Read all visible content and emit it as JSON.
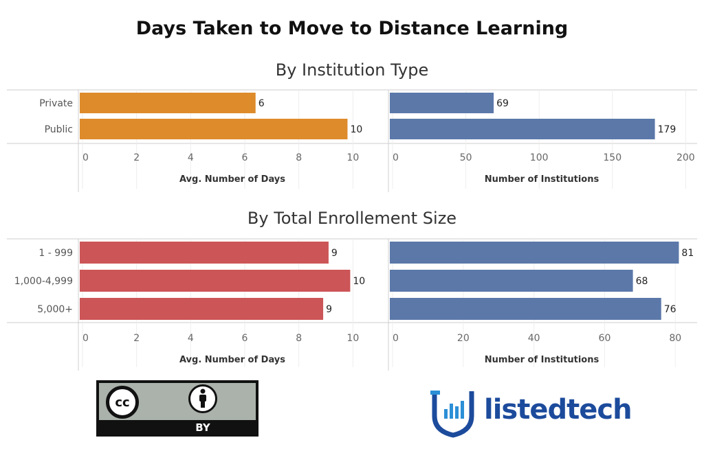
{
  "title": "Days Taken to Move to Distance Learning",
  "sections": [
    {
      "title": "By Institution Type"
    },
    {
      "title": "By Total Enrollement Size"
    }
  ],
  "colors": {
    "days_institution": "#de8b2c",
    "days_enrollment": "#cc5557",
    "institutions": "#5b78a9"
  },
  "chart_data": [
    {
      "type": "bar",
      "orientation": "horizontal",
      "categories": [
        "Private",
        "Public"
      ],
      "values": [
        6.4,
        9.8
      ],
      "data_labels": [
        "6",
        "10"
      ],
      "xlabel": "Avg. Number of Days",
      "xlim": [
        0,
        10.5
      ],
      "ticks": [
        0,
        2,
        4,
        6,
        8,
        10
      ],
      "grid": true
    },
    {
      "type": "bar",
      "orientation": "horizontal",
      "categories": [
        "Private",
        "Public"
      ],
      "values": [
        69,
        179
      ],
      "data_labels": [
        "69",
        "179"
      ],
      "xlabel": "Number of Institutions",
      "xlim": [
        0,
        205
      ],
      "ticks": [
        0,
        50,
        100,
        150,
        200
      ],
      "grid": true
    },
    {
      "type": "bar",
      "orientation": "horizontal",
      "categories": [
        "1 - 999",
        "1,000-4,999",
        "5,000+"
      ],
      "values": [
        9.1,
        9.9,
        8.9
      ],
      "data_labels": [
        "9",
        "10",
        "9"
      ],
      "xlabel": "Avg. Number of Days",
      "xlim": [
        0,
        10.5
      ],
      "ticks": [
        0,
        2,
        4,
        6,
        8,
        10
      ],
      "grid": true
    },
    {
      "type": "bar",
      "orientation": "horizontal",
      "categories": [
        "1 - 999",
        "1,000-4,999",
        "5,000+"
      ],
      "values": [
        81,
        68,
        76
      ],
      "data_labels": [
        "81",
        "68",
        "76"
      ],
      "xlabel": "Number of Institutions",
      "xlim": [
        0,
        85
      ],
      "ticks": [
        0,
        20,
        40,
        60,
        80
      ],
      "grid": true
    }
  ],
  "logos": {
    "license_text": "BY",
    "cc_text": "cc",
    "brand": "listedtech"
  }
}
